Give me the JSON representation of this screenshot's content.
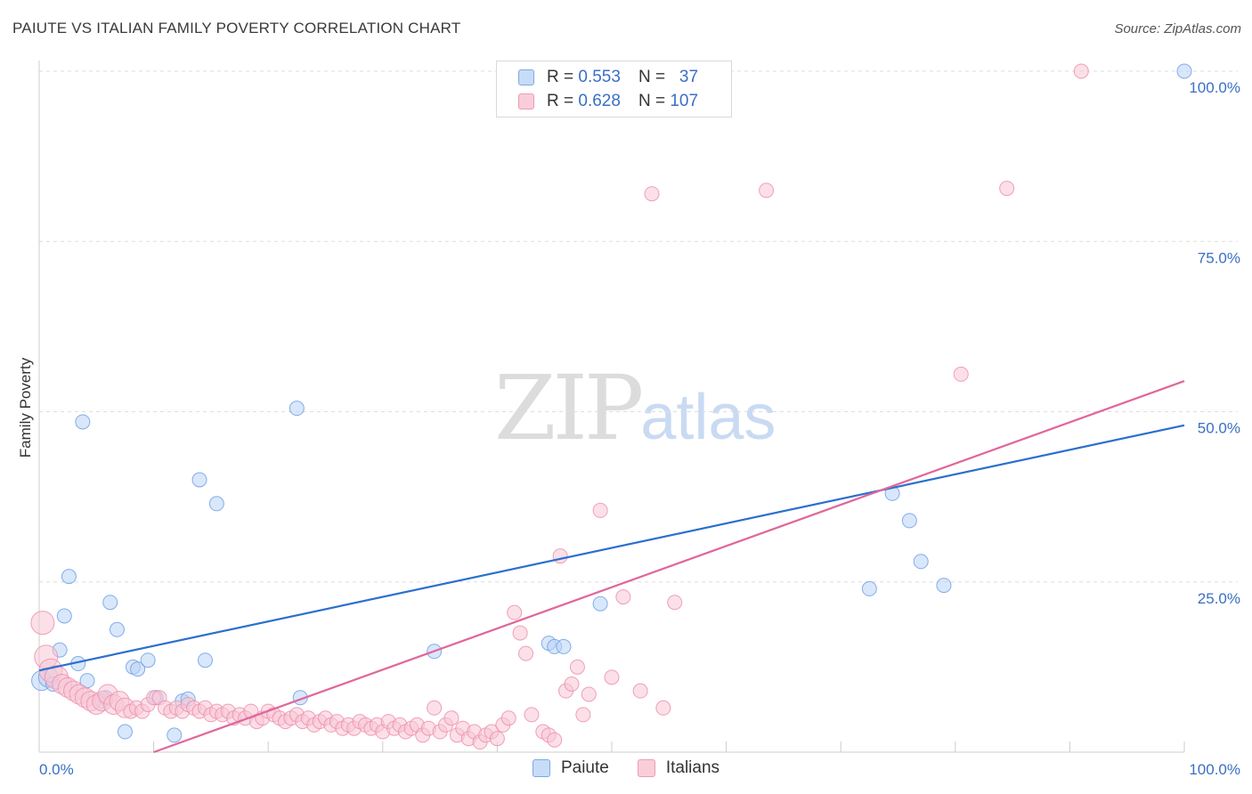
{
  "header": {
    "title": "PAIUTE VS ITALIAN FAMILY POVERTY CORRELATION CHART",
    "source": "Source: ZipAtlas.com"
  },
  "watermark": {
    "zip": "ZIP",
    "atlas": "atlas"
  },
  "legend": {
    "rows": [
      {
        "r_label": "R =",
        "r_value": "0.553",
        "n_label": "N =",
        "n_value": "37",
        "color": "#a8c8f4"
      },
      {
        "r_label": "R =",
        "r_value": "0.628",
        "n_label": "N =",
        "n_value": "107",
        "color": "#f7b8cb"
      }
    ]
  },
  "chart_data": {
    "type": "scatter",
    "title": "PAIUTE VS ITALIAN FAMILY POVERTY CORRELATION CHART",
    "ylabel": "Family Poverty",
    "xlim": [
      0,
      100
    ],
    "ylim": [
      0,
      100
    ],
    "x_tick_labels": [
      "0.0%",
      "100.0%"
    ],
    "y_tick_labels": [
      "25.0%",
      "50.0%",
      "75.0%",
      "100.0%"
    ],
    "y_ticks": [
      25,
      50,
      75,
      100
    ],
    "grid": true,
    "legend_position": "top-center",
    "series": [
      {
        "name": "Paiute",
        "color": "#6fa0e6",
        "fill": "#b9d3f6",
        "trend": {
          "x": [
            0,
            100
          ],
          "y": [
            12.0,
            48.0
          ],
          "color": "#2a6fcf"
        },
        "points": [
          [
            0.2,
            10.5
          ],
          [
            0.8,
            11.0
          ],
          [
            1.2,
            10.0
          ],
          [
            1.8,
            15.0
          ],
          [
            2.2,
            20.0
          ],
          [
            2.6,
            25.8
          ],
          [
            3.4,
            13.0
          ],
          [
            3.8,
            48.5
          ],
          [
            4.2,
            10.5
          ],
          [
            5.5,
            7.5
          ],
          [
            5.8,
            8.0
          ],
          [
            6.2,
            22.0
          ],
          [
            6.8,
            18.0
          ],
          [
            7.5,
            3.0
          ],
          [
            8.2,
            12.5
          ],
          [
            8.6,
            12.2
          ],
          [
            9.5,
            13.5
          ],
          [
            10.2,
            8.0
          ],
          [
            11.8,
            2.5
          ],
          [
            12.5,
            7.5
          ],
          [
            13.0,
            7.8
          ],
          [
            14.0,
            40.0
          ],
          [
            14.5,
            13.5
          ],
          [
            15.5,
            36.5
          ],
          [
            22.5,
            50.5
          ],
          [
            22.8,
            8.0
          ],
          [
            34.5,
            14.8
          ],
          [
            44.5,
            16.0
          ],
          [
            45.0,
            15.5
          ],
          [
            45.8,
            15.5
          ],
          [
            49.0,
            21.8
          ],
          [
            72.5,
            24.0
          ],
          [
            74.5,
            38.0
          ],
          [
            76.0,
            34.0
          ],
          [
            77.0,
            28.0
          ],
          [
            79.0,
            24.5
          ],
          [
            100.0,
            100.0
          ]
        ]
      },
      {
        "name": "Italians",
        "color": "#ee8fae",
        "fill": "#f8c6d6",
        "trend": {
          "x": [
            10,
            100
          ],
          "y": [
            0,
            54.5
          ],
          "color": "#e0669a"
        },
        "points": [
          [
            0.3,
            19.0
          ],
          [
            0.6,
            14.0
          ],
          [
            1.0,
            12.0
          ],
          [
            1.5,
            11.0
          ],
          [
            2.0,
            10.0
          ],
          [
            2.5,
            9.5
          ],
          [
            3.0,
            9.0
          ],
          [
            3.5,
            8.5
          ],
          [
            4.0,
            8.0
          ],
          [
            4.5,
            7.5
          ],
          [
            5.0,
            7.0
          ],
          [
            5.5,
            7.5
          ],
          [
            6.0,
            8.5
          ],
          [
            6.5,
            7.0
          ],
          [
            7.0,
            7.5
          ],
          [
            7.5,
            6.5
          ],
          [
            8.0,
            6.0
          ],
          [
            8.5,
            6.5
          ],
          [
            9.0,
            6.0
          ],
          [
            9.5,
            7.0
          ],
          [
            10.0,
            8.0
          ],
          [
            10.5,
            8.0
          ],
          [
            11.0,
            6.5
          ],
          [
            11.5,
            6.0
          ],
          [
            12.0,
            6.5
          ],
          [
            12.5,
            6.0
          ],
          [
            13.0,
            7.0
          ],
          [
            13.5,
            6.5
          ],
          [
            14.0,
            6.0
          ],
          [
            14.5,
            6.5
          ],
          [
            15.0,
            5.5
          ],
          [
            15.5,
            6.0
          ],
          [
            16.0,
            5.5
          ],
          [
            16.5,
            6.0
          ],
          [
            17.0,
            5.0
          ],
          [
            17.5,
            5.5
          ],
          [
            18.0,
            5.0
          ],
          [
            18.5,
            6.0
          ],
          [
            19.0,
            4.5
          ],
          [
            19.5,
            5.0
          ],
          [
            20.0,
            6.0
          ],
          [
            20.5,
            5.5
          ],
          [
            21.0,
            5.0
          ],
          [
            21.5,
            4.5
          ],
          [
            22.0,
            5.0
          ],
          [
            22.5,
            5.5
          ],
          [
            23.0,
            4.5
          ],
          [
            23.5,
            5.0
          ],
          [
            24.0,
            4.0
          ],
          [
            24.5,
            4.5
          ],
          [
            25.0,
            5.0
          ],
          [
            25.5,
            4.0
          ],
          [
            26.0,
            4.5
          ],
          [
            26.5,
            3.5
          ],
          [
            27.0,
            4.0
          ],
          [
            27.5,
            3.5
          ],
          [
            28.0,
            4.5
          ],
          [
            28.5,
            4.0
          ],
          [
            29.0,
            3.5
          ],
          [
            29.5,
            4.0
          ],
          [
            30.0,
            3.0
          ],
          [
            30.5,
            4.5
          ],
          [
            31.0,
            3.5
          ],
          [
            31.5,
            4.0
          ],
          [
            32.0,
            3.0
          ],
          [
            32.5,
            3.5
          ],
          [
            33.0,
            4.0
          ],
          [
            33.5,
            2.5
          ],
          [
            34.0,
            3.5
          ],
          [
            34.5,
            6.5
          ],
          [
            35.0,
            3.0
          ],
          [
            35.5,
            4.0
          ],
          [
            36.0,
            5.0
          ],
          [
            36.5,
            2.5
          ],
          [
            37.0,
            3.5
          ],
          [
            37.5,
            2.0
          ],
          [
            38.0,
            3.0
          ],
          [
            38.5,
            1.5
          ],
          [
            39.0,
            2.5
          ],
          [
            39.5,
            3.0
          ],
          [
            40.0,
            2.0
          ],
          [
            40.5,
            4.0
          ],
          [
            41.0,
            5.0
          ],
          [
            41.5,
            20.5
          ],
          [
            42.0,
            17.5
          ],
          [
            42.5,
            14.5
          ],
          [
            43.0,
            5.5
          ],
          [
            44.0,
            3.0
          ],
          [
            44.5,
            2.5
          ],
          [
            45.0,
            1.8
          ],
          [
            45.5,
            28.8
          ],
          [
            46.0,
            9.0
          ],
          [
            46.5,
            10.0
          ],
          [
            47.0,
            12.5
          ],
          [
            47.5,
            5.5
          ],
          [
            48.0,
            8.5
          ],
          [
            49.0,
            35.5
          ],
          [
            50.0,
            11.0
          ],
          [
            51.0,
            22.8
          ],
          [
            52.5,
            9.0
          ],
          [
            53.5,
            82.0
          ],
          [
            54.5,
            6.5
          ],
          [
            55.5,
            22.0
          ],
          [
            63.5,
            82.5
          ],
          [
            80.5,
            55.5
          ],
          [
            84.5,
            82.8
          ],
          [
            91.0,
            100.0
          ]
        ]
      }
    ]
  },
  "bottom_legend": {
    "items": [
      {
        "label": "Paiute",
        "color": "#a8c8f4"
      },
      {
        "label": "Italians",
        "color": "#f7b8cb"
      }
    ]
  },
  "axes": {
    "ylabel": "Family Poverty",
    "x_left": "0.0%",
    "x_right": "100.0%"
  }
}
